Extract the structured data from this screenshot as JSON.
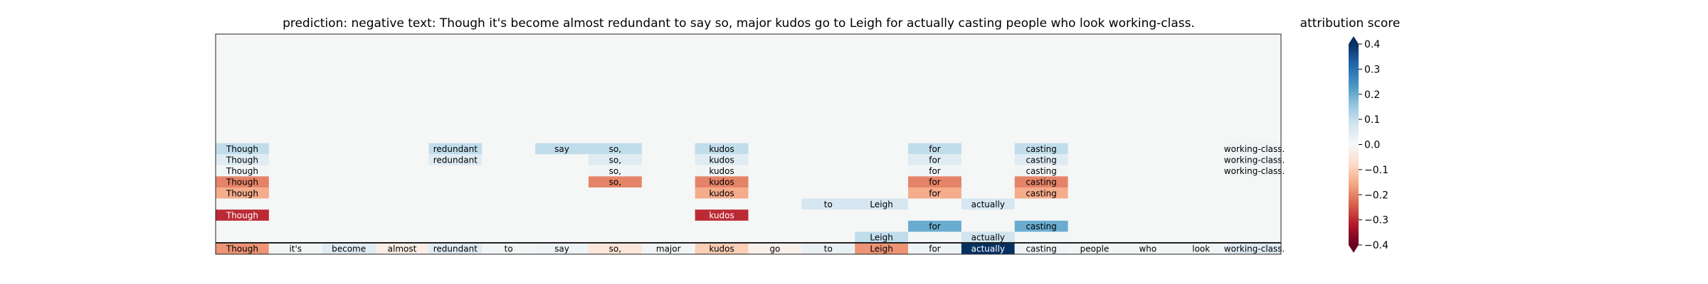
{
  "chart_data": {
    "type": "heatmap",
    "title": "prediction:  negative     text:  Though it's become almost redundant to say so, major kudos go to Leigh for actually casting people who look working-class.",
    "tokens": [
      "Though",
      "it's",
      "become",
      "almost",
      "redundant",
      "to",
      "say",
      "so,",
      "major",
      "kudos",
      "go",
      "to",
      "Leigh",
      "for",
      "actually",
      "casting",
      "people",
      "who",
      "look",
      "working-class."
    ],
    "rows": [
      {
        "values": [
          0.1,
          0,
          0,
          0,
          0.1,
          0,
          0.1,
          0.1,
          0,
          0.1,
          0,
          0,
          0,
          0.1,
          0,
          0.1,
          0,
          0,
          0,
          0.02
        ]
      },
      {
        "values": [
          0.05,
          0,
          0,
          0,
          0.05,
          0,
          0,
          0.05,
          0,
          0.05,
          0,
          0,
          0,
          0.05,
          0,
          0.05,
          0,
          0,
          0,
          0.02
        ]
      },
      {
        "values": [
          0.01,
          0,
          0,
          0,
          0,
          0,
          0,
          0.01,
          0,
          0.01,
          0,
          0,
          0,
          0.01,
          0,
          0.01,
          0,
          0,
          0,
          0.01
        ]
      },
      {
        "values": [
          -0.2,
          0,
          0,
          0,
          0,
          0,
          0,
          -0.2,
          0,
          -0.2,
          0,
          0,
          0,
          -0.2,
          0,
          -0.2,
          0,
          0,
          0,
          0
        ]
      },
      {
        "values": [
          -0.15,
          0,
          0,
          0,
          0,
          0,
          0,
          0,
          0,
          -0.15,
          0,
          0,
          0,
          -0.15,
          0,
          -0.15,
          0,
          0,
          0,
          0
        ]
      },
      {
        "values": [
          0,
          0,
          0,
          0,
          0,
          0,
          0,
          0,
          0,
          0,
          0,
          0.07,
          0.07,
          0,
          0.07,
          0,
          0,
          0,
          0,
          0
        ]
      },
      {
        "values": [
          -0.3,
          0,
          0,
          0,
          0,
          0,
          0,
          0,
          0,
          -0.3,
          0,
          0,
          0,
          0,
          0,
          0,
          0,
          0,
          0,
          0
        ]
      },
      {
        "values": [
          0,
          0,
          0,
          0,
          0,
          0,
          0,
          0,
          0,
          0,
          0,
          0,
          0,
          0.2,
          0,
          0.2,
          0,
          0,
          0,
          0
        ]
      },
      {
        "values": [
          0,
          0,
          0,
          0,
          0,
          0,
          0,
          0,
          0,
          0,
          0,
          0,
          0.1,
          0,
          0.08,
          0,
          0,
          0,
          0,
          0
        ]
      },
      {
        "values": [
          -0.18,
          0.01,
          0.05,
          -0.03,
          0.05,
          0.01,
          0.02,
          -0.05,
          0.01,
          -0.1,
          -0.02,
          0.03,
          -0.18,
          0.02,
          0.4,
          0.02,
          0.01,
          0.01,
          0.01,
          0.05
        ]
      }
    ],
    "colorbar": {
      "label": "attribution score",
      "vmin": -0.4,
      "vmax": 0.4,
      "ticks": [
        "0.4",
        "0.3",
        "0.2",
        "0.1",
        "0.0",
        "−0.1",
        "−0.2",
        "−0.3",
        "−0.4"
      ],
      "tick_values": [
        0.4,
        0.3,
        0.2,
        0.1,
        0.0,
        -0.1,
        -0.2,
        -0.3,
        -0.4
      ],
      "colormap": [
        "#67001f",
        "#b2182b",
        "#d6604d",
        "#f4a582",
        "#fddbc7",
        "#f7f7f7",
        "#d1e5f0",
        "#92c5de",
        "#4393c3",
        "#2166ac",
        "#053061"
      ]
    },
    "colors": {
      "background": "#f5f6f6",
      "frame": "#222222",
      "text": "#000000"
    }
  }
}
